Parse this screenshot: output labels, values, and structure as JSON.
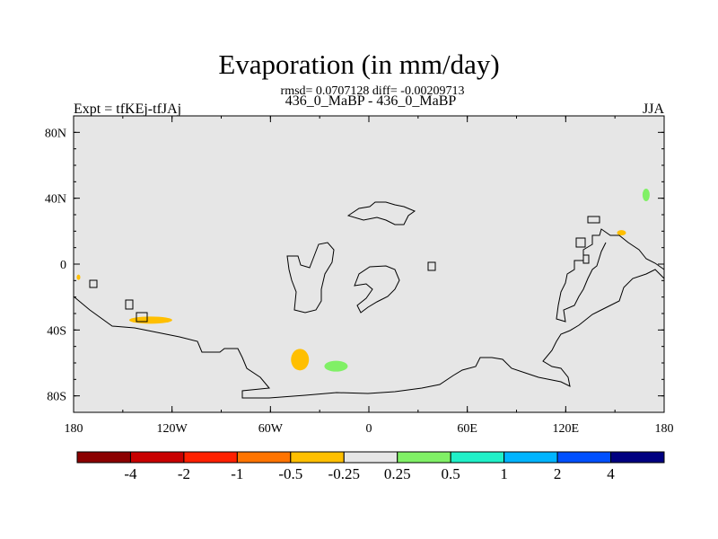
{
  "title": "Evaporation (in mm/day)",
  "stats_line": "rmsd= 0.0707128 diff= -0.00209713",
  "subtitle": "436_0_MaBP - 436_0_MaBP",
  "left_string": "Expt = tfKEj-tfJAj",
  "right_string": "JJA",
  "map": {
    "lon_range": [
      -180,
      180
    ],
    "lat_range": [
      -90,
      90
    ],
    "background_color": "#e6e6e6",
    "y_ticks": [
      {
        "lat": 80,
        "label": "80N"
      },
      {
        "lat": 40,
        "label": "40N"
      },
      {
        "lat": 0,
        "label": "0"
      },
      {
        "lat": -40,
        "label": "40S"
      },
      {
        "lat": -80,
        "label": "80S"
      }
    ],
    "x_ticks": [
      {
        "lon": -180,
        "label": "180"
      },
      {
        "lon": -120,
        "label": "120W"
      },
      {
        "lon": -60,
        "label": "60W"
      },
      {
        "lon": 0,
        "label": "0"
      },
      {
        "lon": 60,
        "label": "60E"
      },
      {
        "lon": 120,
        "label": "120E"
      },
      {
        "lon": 180,
        "label": "180"
      }
    ],
    "anomaly_features": [
      {
        "name": "west-pacific-south-negative",
        "value_class": "-0.5 to -0.25",
        "color": "#ffbf00",
        "lon": -133,
        "lat": -34
      },
      {
        "name": "date-line-north-negative",
        "value_class": "-0.5 to -0.25",
        "color": "#ffbf00",
        "lon": -177,
        "lat": -8
      },
      {
        "name": "south-atlantic-west-negative",
        "value_class": "-0.5 to -0.25",
        "color": "#ffbf00",
        "lon": -42,
        "lat": -58
      },
      {
        "name": "south-atlantic-east-positive",
        "value_class": "0.25 to 0.5",
        "color": "#80f066",
        "lon": -20,
        "lat": -62
      },
      {
        "name": "north-pacific-east-positive",
        "value_class": "0.25 to 0.5",
        "color": "#80f066",
        "lon": 169,
        "lat": 42
      },
      {
        "name": "japan-negative",
        "value_class": "-0.5 to -0.25",
        "color": "#ffbf00",
        "lon": 154,
        "lat": 19
      }
    ]
  },
  "colorbar": {
    "colors": [
      "#8b0000",
      "#c80000",
      "#ff2000",
      "#ff7400",
      "#ffbf00",
      "#e6e6e6",
      "#80f066",
      "#20f0c8",
      "#00b4ff",
      "#0050ff",
      "#000080"
    ],
    "labels": [
      "-4",
      "-2",
      "-1",
      "-0.5",
      "-0.25",
      "0.25",
      "0.5",
      "1",
      "2",
      "4"
    ]
  }
}
